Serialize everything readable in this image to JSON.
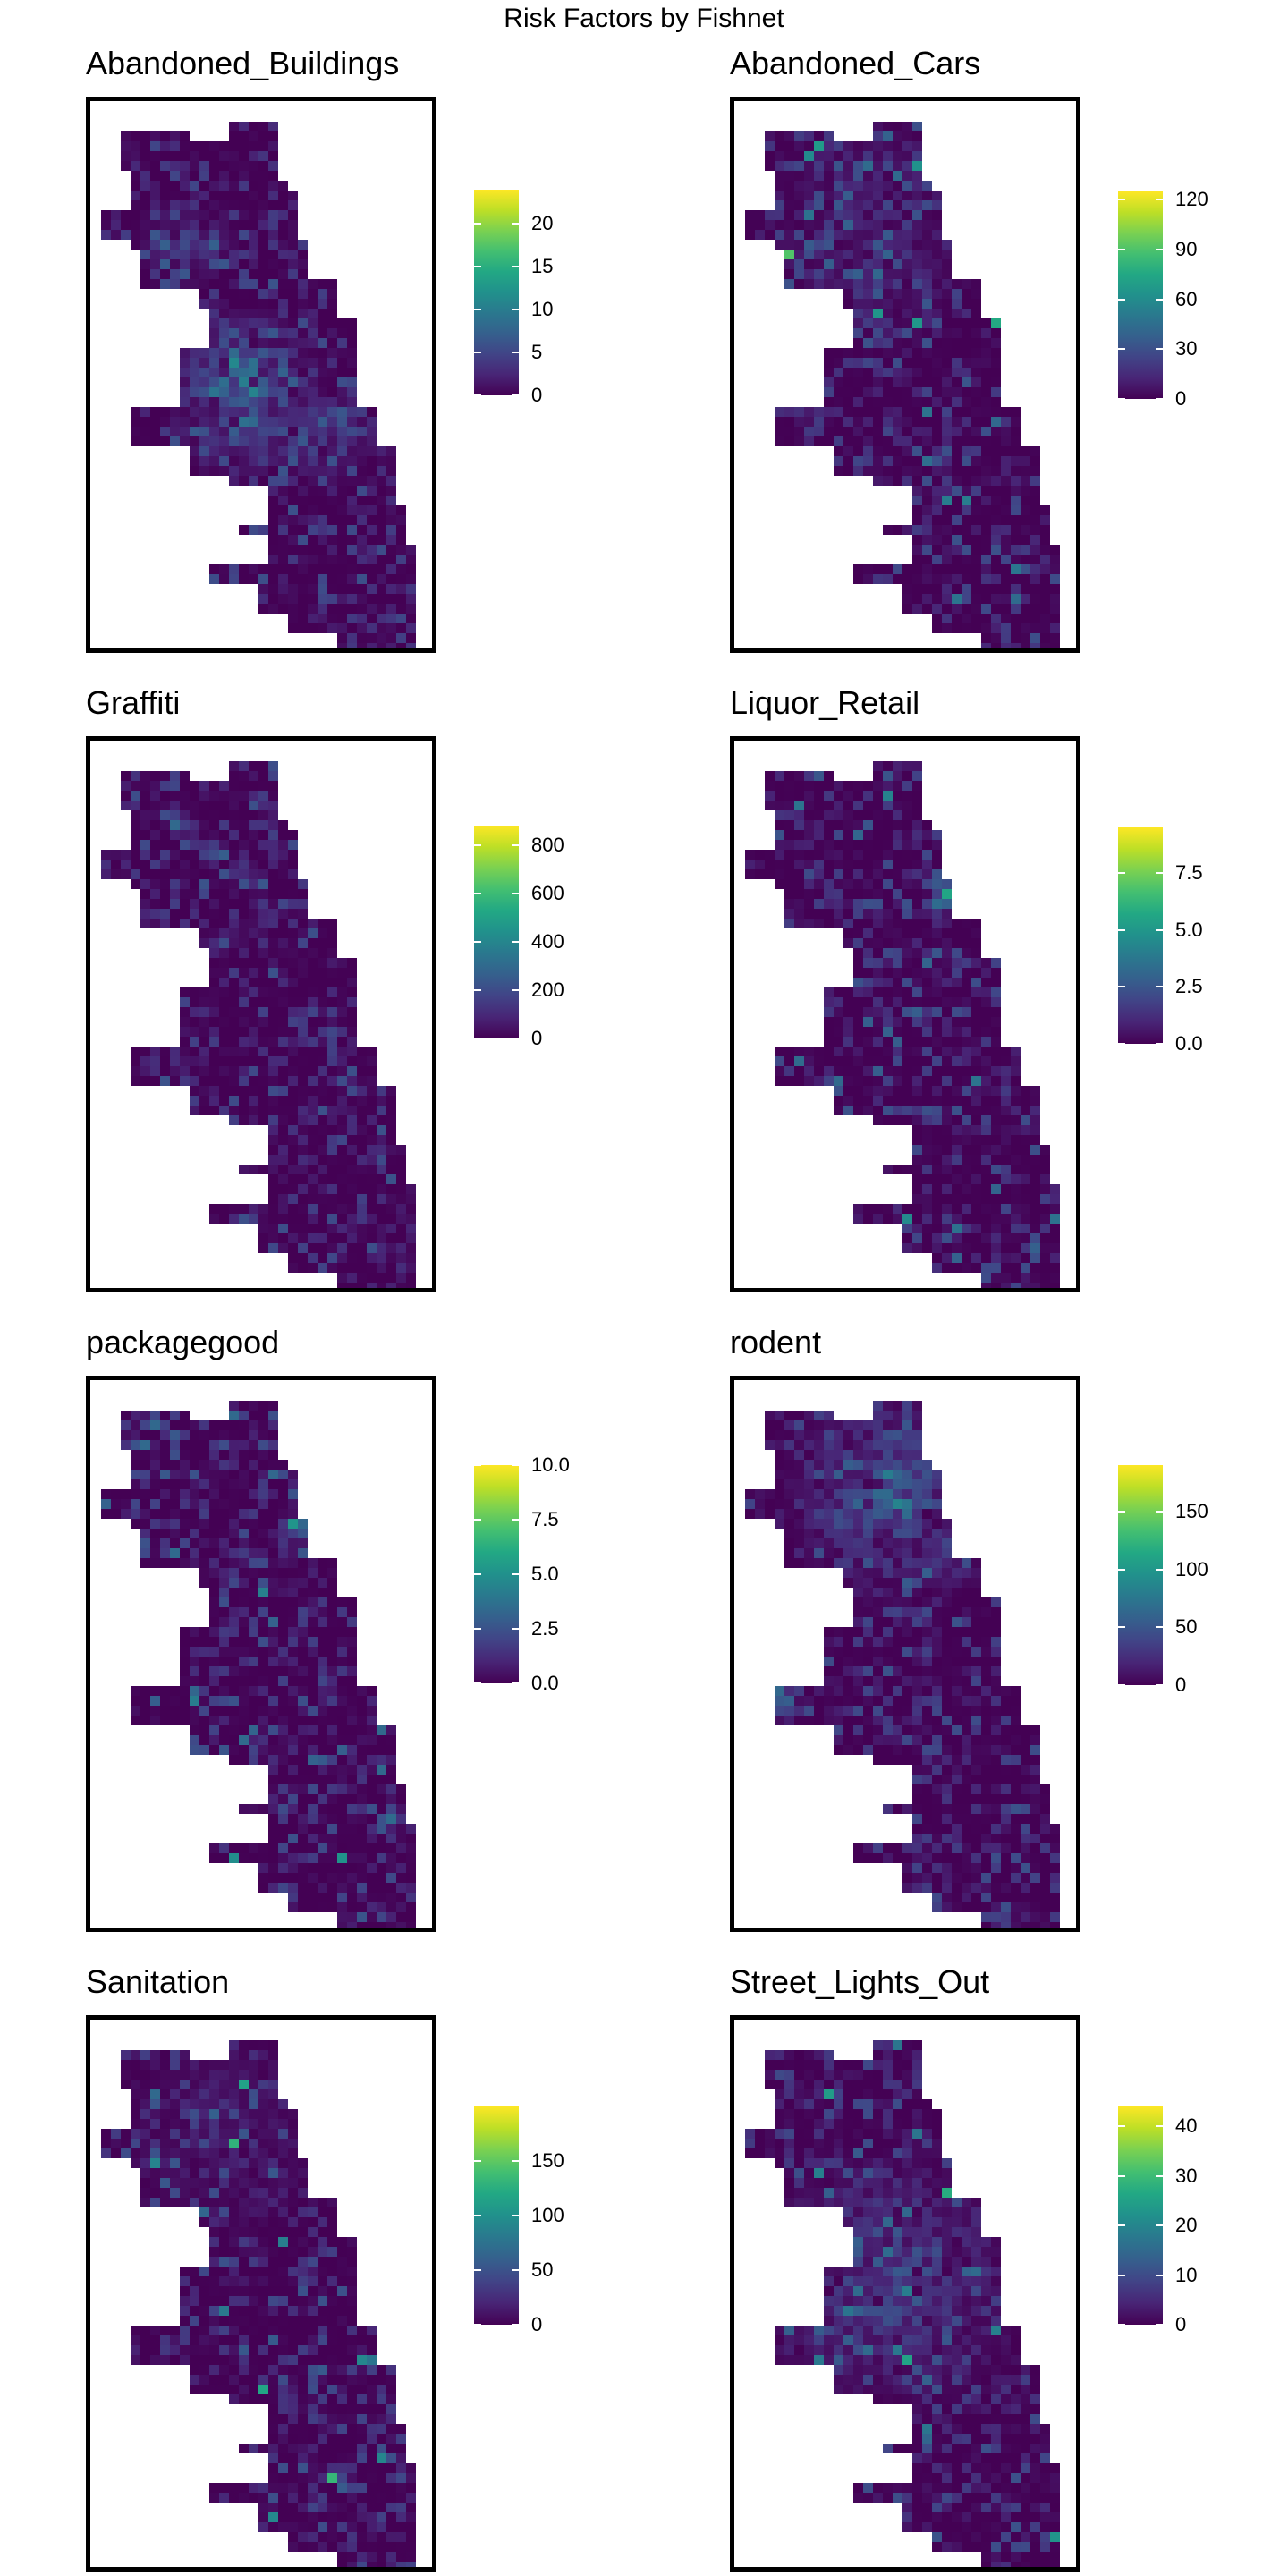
{
  "figure": {
    "title": "Risk Factors by Fishnet"
  },
  "colors": {
    "viridis": [
      "#440154",
      "#482576",
      "#414487",
      "#35608d",
      "#2a788e",
      "#21918c",
      "#22a884",
      "#43bf71",
      "#7ad151",
      "#bddf26",
      "#fde725"
    ],
    "frame": "#000000",
    "background": "#ffffff"
  },
  "panels": [
    {
      "title": "Abandoned_Buildings",
      "legend": {
        "max": 24,
        "ticks": [
          "0",
          "5",
          "10",
          "15",
          "20"
        ],
        "tick_values": [
          0,
          5,
          10,
          15,
          20
        ]
      },
      "hotspots": "south-cluster"
    },
    {
      "title": "Abandoned_Cars",
      "legend": {
        "max": 125,
        "ticks": [
          "0",
          "30",
          "60",
          "90",
          "120"
        ],
        "tick_values": [
          0,
          30,
          60,
          90,
          120
        ]
      },
      "hotspots": "scattered"
    },
    {
      "title": "Graffiti",
      "legend": {
        "max": 880,
        "ticks": [
          "0",
          "200",
          "400",
          "600",
          "800"
        ],
        "tick_values": [
          0,
          200,
          400,
          600,
          800
        ]
      },
      "hotspots": "diagonal-north"
    },
    {
      "title": "Liquor_Retail",
      "legend": {
        "max": 9.5,
        "ticks": [
          "0.0",
          "2.5",
          "5.0",
          "7.5"
        ],
        "tick_values": [
          0,
          2.5,
          5,
          7.5
        ]
      },
      "hotspots": "lakefront"
    },
    {
      "title": "packagegood",
      "legend": {
        "max": 10,
        "ticks": [
          "0.0",
          "2.5",
          "5.0",
          "7.5",
          "10.0"
        ],
        "tick_values": [
          0,
          2.5,
          5,
          7.5,
          10
        ]
      },
      "hotspots": "lakefront"
    },
    {
      "title": "rodent",
      "legend": {
        "max": 190,
        "ticks": [
          "0",
          "50",
          "100",
          "150"
        ],
        "tick_values": [
          0,
          50,
          100,
          150
        ]
      },
      "hotspots": "north-wide"
    },
    {
      "title": "Sanitation",
      "legend": {
        "max": 200,
        "ticks": [
          "0",
          "50",
          "100",
          "150"
        ],
        "tick_values": [
          0,
          50,
          100,
          150
        ]
      },
      "hotspots": "sparse"
    },
    {
      "title": "Street_Lights_Out",
      "legend": {
        "max": 44,
        "ticks": [
          "0",
          "10",
          "20",
          "30",
          "40"
        ],
        "tick_values": [
          0,
          10,
          20,
          30,
          40
        ]
      },
      "hotspots": "south-wide"
    }
  ]
}
